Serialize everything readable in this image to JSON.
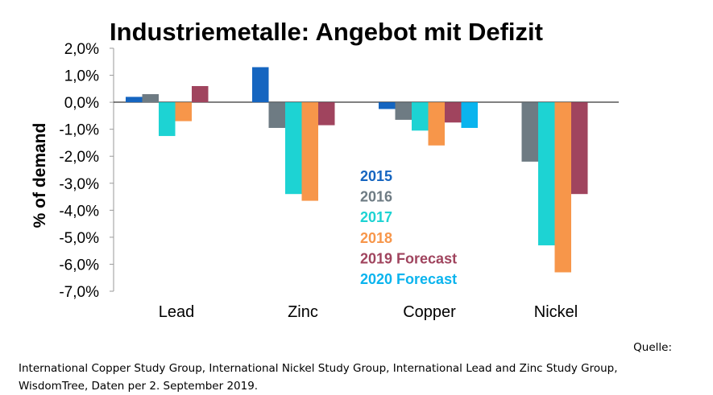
{
  "chart_data": {
    "type": "bar",
    "title": "Industriemetalle: Angebot mit Defizit",
    "ylabel": "% of demand",
    "xlabel": "",
    "ylim": [
      -7.0,
      2.0
    ],
    "yticks": [
      "2,0%",
      "1,0%",
      "0,0%",
      "-1,0%",
      "-2,0%",
      "-3,0%",
      "-4,0%",
      "-5,0%",
      "-6,0%",
      "-7,0%"
    ],
    "categories": [
      "Lead",
      "Zinc",
      "Copper",
      "Nickel"
    ],
    "series": [
      {
        "name": "2015",
        "color": "#1565c0",
        "values": [
          0.2,
          1.3,
          -0.25,
          null
        ]
      },
      {
        "name": "2016",
        "color": "#6e7b83",
        "values": [
          0.3,
          -0.95,
          -0.65,
          -2.2
        ]
      },
      {
        "name": "2017",
        "color": "#1dd3d3",
        "values": [
          -1.25,
          -3.4,
          -1.05,
          -5.3
        ]
      },
      {
        "name": "2018",
        "color": "#f7964a",
        "values": [
          -0.7,
          -3.65,
          -1.6,
          -6.3
        ]
      },
      {
        "name": "2019 Forecast",
        "color": "#a0445e",
        "values": [
          0.6,
          -0.85,
          -0.75,
          -3.4
        ]
      },
      {
        "name": "2020 Forecast",
        "color": "#0ab4ee",
        "values": [
          null,
          null,
          -0.95,
          null
        ]
      }
    ],
    "legend_position": "center"
  },
  "source": {
    "label": "Quelle:",
    "text": "International Copper Study Group, International Nickel Study Group, International Lead and Zinc Study Group, WisdomTree, Daten per 2. September 2019."
  }
}
